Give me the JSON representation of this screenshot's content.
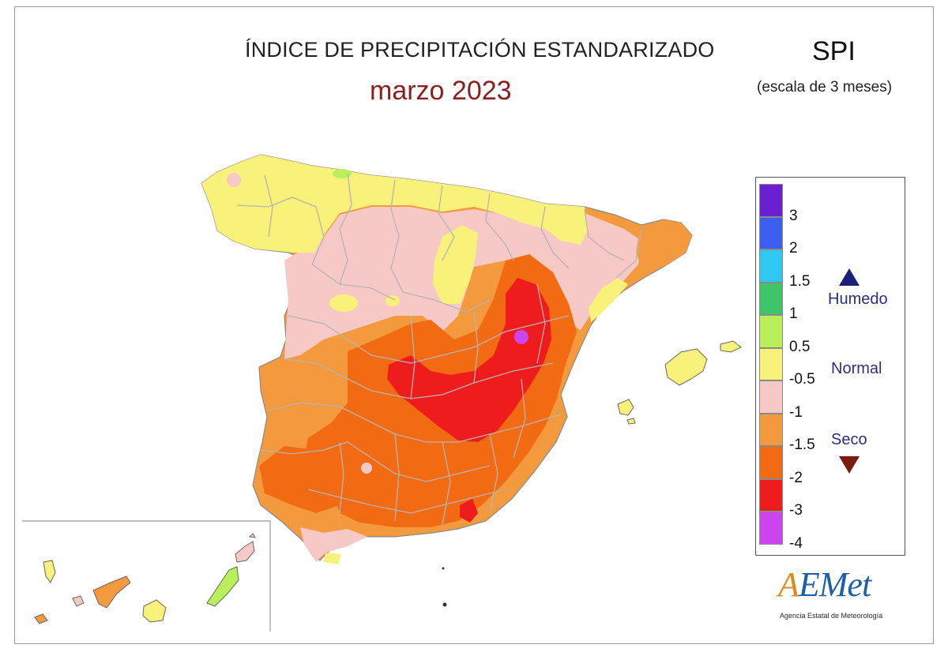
{
  "header": {
    "title": "ÍNDICE DE PRECIPITACIÓN ESTANDARIZADO",
    "subtitle": "marzo 2023",
    "index_name": "SPI",
    "scale_note": "(escala de 3 meses)"
  },
  "legend": {
    "ticks": [
      "3",
      "2",
      "1.5",
      "1",
      "0.5",
      "-0.5",
      "-1",
      "-1.5",
      "-2",
      "-3",
      "-4"
    ],
    "bins": [
      {
        "color": "#6a1fd0"
      },
      {
        "color": "#3d5ff0"
      },
      {
        "color": "#2ec8f0"
      },
      {
        "color": "#3fc46a"
      },
      {
        "color": "#b8ef5a"
      },
      {
        "color": "#f8f27a"
      },
      {
        "color": "#f7c9c6"
      },
      {
        "color": "#f39a3e"
      },
      {
        "color": "#f26a12"
      },
      {
        "color": "#ee1c1c"
      },
      {
        "color": "#cc44ee"
      }
    ],
    "categories": {
      "wet": "Humedo",
      "normal": "Normal",
      "dry": "Seco"
    }
  },
  "logo": {
    "word_a": "A",
    "word_rest": "EMet",
    "caption": "Agencia Estatal de Meteorología"
  },
  "colors": {
    "yellow": "#f8f27a",
    "pink": "#f7c9c6",
    "light_orange": "#f39a3e",
    "orange": "#f26a12",
    "red": "#ee1c1c",
    "violet": "#cc44ee",
    "light_green": "#b8ef5a",
    "borders": "#b9b2b2"
  }
}
